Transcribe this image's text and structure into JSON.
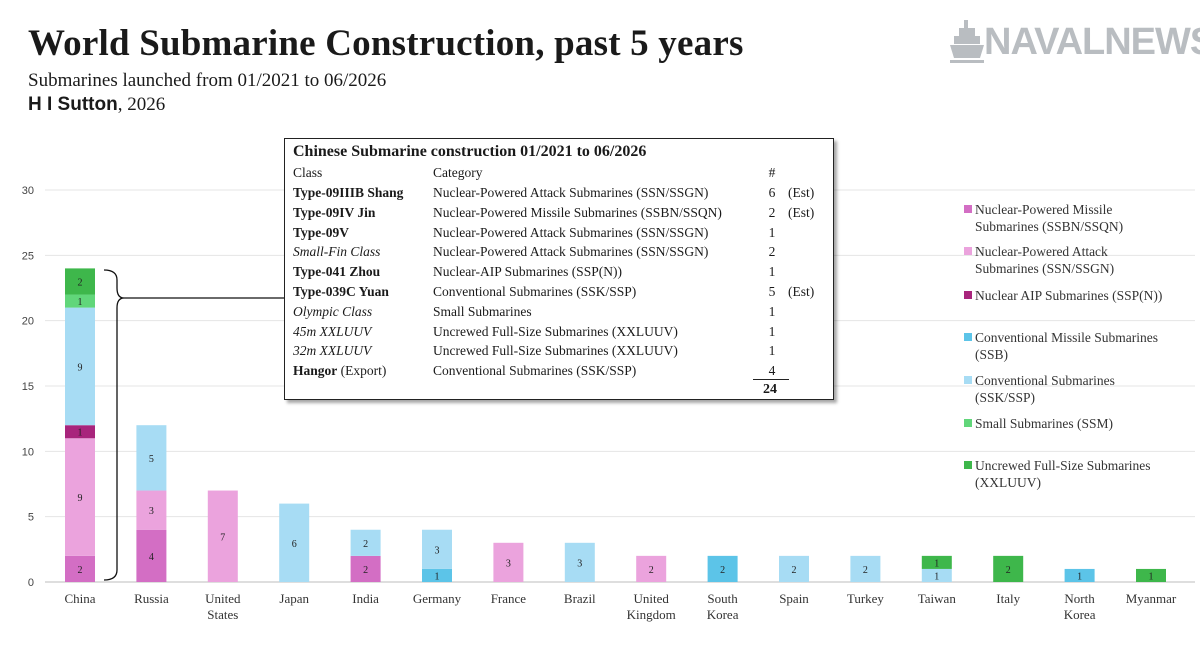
{
  "header": {
    "title": "World Submarine Construction, past 5 years",
    "subtitle": "Submarines launched from 01/2021 to 06/2026",
    "author_name": "H I Sutton",
    "author_year": ", 2026",
    "logo_text": "NAVALNEWS"
  },
  "colors": {
    "nuclear_missile": "#d36ec4",
    "nuclear_attack": "#eba3dd",
    "nuclear_aip": "#a8247c",
    "conventional_missile": "#5cc4e8",
    "conventional": "#a7dcf4",
    "small": "#61d67a",
    "uncrewed": "#3eb74b"
  },
  "chart_data": {
    "type": "bar",
    "stacked": true,
    "categories": [
      "China",
      "Russia",
      "United States",
      "Japan",
      "India",
      "Germany",
      "France",
      "Brazil",
      "United Kingdom",
      "South Korea",
      "Spain",
      "Turkey",
      "Taiwan",
      "Italy",
      "North Korea",
      "Myanmar"
    ],
    "category_labels": [
      [
        "China"
      ],
      [
        "Russia"
      ],
      [
        "United",
        "States"
      ],
      [
        "Japan"
      ],
      [
        "India"
      ],
      [
        "Germany"
      ],
      [
        "France"
      ],
      [
        "Brazil"
      ],
      [
        "United",
        "Kingdom"
      ],
      [
        "South",
        "Korea"
      ],
      [
        "Spain"
      ],
      [
        "Turkey"
      ],
      [
        "Taiwan"
      ],
      [
        "Italy"
      ],
      [
        "North",
        "Korea"
      ],
      [
        "Myanmar"
      ]
    ],
    "ylim": [
      0,
      30
    ],
    "yticks": [
      0,
      5,
      10,
      15,
      20,
      25,
      30
    ],
    "series": [
      {
        "name": "Nuclear-Powered Missile Submarines (SSBN/SSQN)",
        "color_key": "nuclear_missile",
        "values": [
          2,
          4,
          0,
          0,
          2,
          0,
          0,
          0,
          0,
          0,
          0,
          0,
          0,
          0,
          0,
          0
        ]
      },
      {
        "name": "Nuclear-Powered Attack Submarines (SSN/SSGN)",
        "color_key": "nuclear_attack",
        "values": [
          9,
          3,
          7,
          0,
          0,
          0,
          3,
          0,
          2,
          0,
          0,
          0,
          0,
          0,
          0,
          0
        ]
      },
      {
        "name": "Nuclear AIP Submarines (SSP(N))",
        "color_key": "nuclear_aip",
        "values": [
          1,
          0,
          0,
          0,
          0,
          0,
          0,
          0,
          0,
          0,
          0,
          0,
          0,
          0,
          0,
          0
        ]
      },
      {
        "name": "Conventional Missile Submarines (SSB)",
        "color_key": "conventional_missile",
        "values": [
          0,
          0,
          0,
          0,
          0,
          1,
          0,
          0,
          0,
          2,
          0,
          0,
          0,
          0,
          1,
          0
        ]
      },
      {
        "name": "Conventional Submarines (SSK/SSP)",
        "color_key": "conventional",
        "values": [
          9,
          5,
          0,
          6,
          2,
          3,
          0,
          3,
          0,
          0,
          2,
          2,
          1,
          0,
          0,
          0
        ]
      },
      {
        "name": "Small Submarines (SSM)",
        "color_key": "small",
        "values": [
          1,
          0,
          0,
          0,
          0,
          0,
          0,
          0,
          0,
          0,
          0,
          0,
          0,
          0,
          0,
          0
        ]
      },
      {
        "name": "Uncrewed Full-Size Submarines (XXLUUV)",
        "color_key": "uncrewed",
        "values": [
          2,
          0,
          0,
          0,
          0,
          0,
          0,
          0,
          0,
          0,
          0,
          0,
          1,
          2,
          0,
          1
        ]
      }
    ]
  },
  "legend": [
    {
      "key": "nuclear_missile",
      "lines": [
        "Nuclear-Powered Missile",
        "Submarines (SSBN/SSQN)"
      ]
    },
    {
      "key": "nuclear_attack",
      "lines": [
        "Nuclear-Powered Attack",
        "Submarines (SSN/SSGN)"
      ]
    },
    {
      "key": "nuclear_aip",
      "lines": [
        "Nuclear AIP Submarines (SSP(N))"
      ]
    },
    {
      "key": "conventional_missile",
      "lines": [
        "Conventional Missile Submarines",
        "(SSB)"
      ]
    },
    {
      "key": "conventional",
      "lines": [
        "Conventional Submarines",
        "(SSK/SSP)"
      ]
    },
    {
      "key": "small",
      "lines": [
        "Small Submarines (SSM)"
      ]
    },
    {
      "key": "uncrewed",
      "lines": [
        "Uncrewed Full-Size Submarines",
        "(XXLUUV)"
      ]
    }
  ],
  "inset": {
    "title": "Chinese Submarine construction 01/2021 to 06/2026",
    "header": {
      "class": "Class",
      "category": "Category",
      "count": "#"
    },
    "rows": [
      {
        "class": "Type-09IIIB Shang",
        "class_extra": "",
        "style": "bold",
        "category": "Nuclear-Powered Attack Submarines (SSN/SSGN)",
        "count": "6",
        "note": "(Est)"
      },
      {
        "class": "Type-09IV Jin",
        "class_extra": "",
        "style": "bold",
        "category": "Nuclear-Powered Missile Submarines (SSBN/SSQN)",
        "count": "2",
        "note": "(Est)"
      },
      {
        "class": "Type-09V",
        "class_extra": "",
        "style": "bold",
        "category": "Nuclear-Powered Attack Submarines (SSN/SSGN)",
        "count": "1",
        "note": ""
      },
      {
        "class": "Small-Fin Class",
        "class_extra": "",
        "style": "italic",
        "category": "Nuclear-Powered Attack Submarines (SSN/SSGN)",
        "count": "2",
        "note": ""
      },
      {
        "class": "Type-041 Zhou",
        "class_extra": "",
        "style": "bold",
        "category": "Nuclear-AIP Submarines (SSP(N))",
        "count": "1",
        "note": ""
      },
      {
        "class": "Type-039C Yuan",
        "class_extra": "",
        "style": "bold",
        "category": "Conventional Submarines (SSK/SSP)",
        "count": "5",
        "note": "(Est)"
      },
      {
        "class": "Olympic Class",
        "class_extra": "",
        "style": "italic",
        "category": "Small Submarines",
        "count": "1",
        "note": ""
      },
      {
        "class": "45m XXLUUV",
        "class_extra": "",
        "style": "italic",
        "category": "Uncrewed Full-Size Submarines (XXLUUV)",
        "count": "1",
        "note": ""
      },
      {
        "class": "32m XXLUUV",
        "class_extra": "",
        "style": "italic",
        "category": "Uncrewed Full-Size Submarines (XXLUUV)",
        "count": "1",
        "note": ""
      },
      {
        "class": "Hangor",
        "class_extra": " (Export)",
        "style": "bold",
        "category": "Conventional Submarines (SSK/SSP)",
        "count": "4",
        "note": ""
      }
    ],
    "total": "24"
  }
}
